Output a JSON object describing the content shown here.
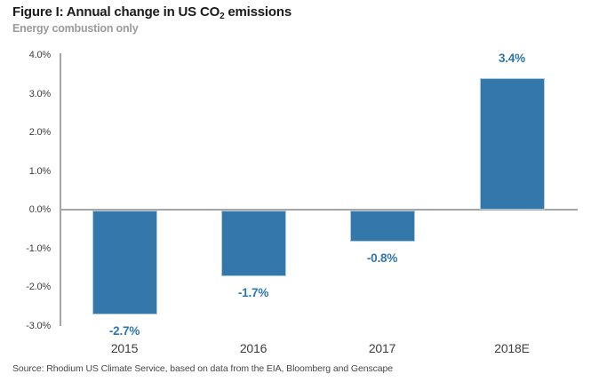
{
  "header": {
    "title_pre": "Figure I: Annual change in US CO",
    "title_sub": "2",
    "title_post": " emissions",
    "subtitle": "Energy combustion only"
  },
  "chart_data": {
    "type": "bar",
    "title": "Figure I: Annual change in US CO₂ emissions",
    "subtitle": "Energy combustion only",
    "categories": [
      "2015",
      "2016",
      "2017",
      "2018E"
    ],
    "values": [
      -2.7,
      -1.7,
      -0.8,
      3.4
    ],
    "value_labels": [
      "-2.7%",
      "-1.7%",
      "-0.8%",
      "3.4%"
    ],
    "series_name": "Annual change in US CO2 emissions (%)",
    "xlabel": "",
    "ylabel": "",
    "ylim": [
      -3.0,
      4.0
    ],
    "y_tick_values": [
      4,
      3,
      2,
      1,
      0,
      -1,
      -2,
      -3
    ],
    "y_tick_labels": [
      "4.0%",
      "3.0%",
      "2.0%",
      "1.0%",
      "0.0%",
      "-1.0%",
      "-2.0%",
      "-3.0%"
    ],
    "grid": false,
    "legend_position": "none",
    "bar_color": "#3377ab",
    "value_label_color": "#2e76ad",
    "axis_color": "#a6a6a6"
  },
  "footer": {
    "source": "Source: Rhodium US Climate Service, based on data from the EIA, Bloomberg and Genscape"
  }
}
